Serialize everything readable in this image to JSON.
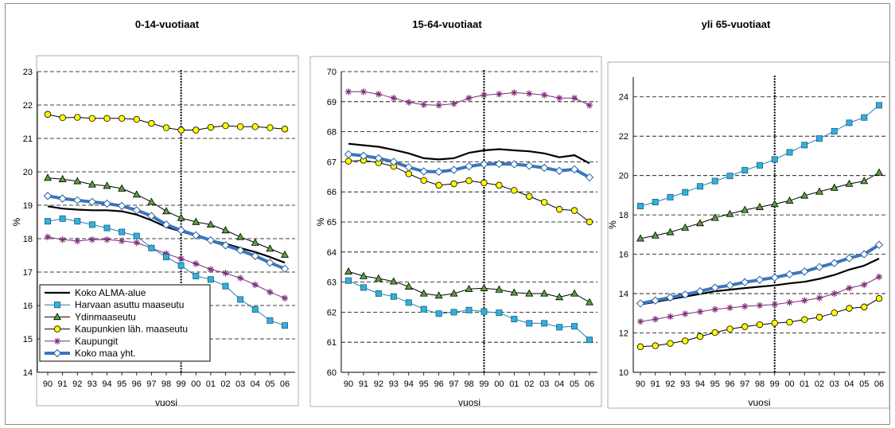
{
  "chart_data": [
    {
      "type": "line",
      "title": "0-14-vuotiaat",
      "xlabel": "vuosi",
      "ylabel": "%",
      "categories": [
        "90",
        "91",
        "92",
        "93",
        "94",
        "95",
        "96",
        "97",
        "98",
        "99",
        "00",
        "01",
        "02",
        "03",
        "04",
        "05",
        "06"
      ],
      "ylim": [
        14,
        23
      ],
      "yticks": [
        14,
        15,
        16,
        17,
        18,
        19,
        20,
        21,
        22,
        23
      ],
      "grid": "horizontal dashed",
      "vertical_marker": "99",
      "legend": "bottom-left",
      "series": [
        {
          "name": "Koko ALMA-alue",
          "values": [
            18.97,
            18.9,
            18.87,
            18.85,
            18.85,
            18.82,
            18.72,
            18.55,
            18.35,
            18.22,
            18.08,
            17.95,
            17.85,
            17.72,
            17.6,
            17.45,
            17.28
          ]
        },
        {
          "name": "Harvaan asuttu maaseutu",
          "values": [
            18.52,
            18.6,
            18.52,
            18.42,
            18.32,
            18.2,
            18.08,
            17.72,
            17.45,
            17.2,
            16.88,
            16.78,
            16.58,
            16.18,
            15.88,
            15.55,
            15.4
          ]
        },
        {
          "name": "Ydinmaaseutu",
          "values": [
            19.82,
            19.78,
            19.72,
            19.62,
            19.58,
            19.5,
            19.32,
            19.1,
            18.82,
            18.62,
            18.5,
            18.42,
            18.25,
            18.05,
            17.88,
            17.7,
            17.52
          ]
        },
        {
          "name": "Kaupunkien läh. maaseutu",
          "values": [
            21.72,
            21.62,
            21.63,
            21.6,
            21.6,
            21.6,
            21.57,
            21.45,
            21.32,
            21.25,
            21.25,
            21.33,
            21.38,
            21.35,
            21.35,
            21.32,
            21.28
          ]
        },
        {
          "name": "Kaupungit",
          "values": [
            18.05,
            17.97,
            17.93,
            17.97,
            17.97,
            17.93,
            17.88,
            17.72,
            17.55,
            17.4,
            17.25,
            17.08,
            16.97,
            16.82,
            16.62,
            16.4,
            16.22
          ]
        },
        {
          "name": "Koko maa yht.",
          "values": [
            19.28,
            19.2,
            19.15,
            19.1,
            19.05,
            18.98,
            18.85,
            18.68,
            18.42,
            18.25,
            18.1,
            17.95,
            17.8,
            17.65,
            17.48,
            17.28,
            17.1
          ]
        }
      ]
    },
    {
      "type": "line",
      "title": "15-64-vuotiaat",
      "xlabel": "vuosi",
      "ylabel": "%",
      "categories": [
        "90",
        "91",
        "92",
        "93",
        "94",
        "95",
        "96",
        "97",
        "98",
        "99",
        "00",
        "01",
        "02",
        "03",
        "04",
        "05",
        "06"
      ],
      "ylim": [
        60,
        70
      ],
      "yticks": [
        60,
        61,
        62,
        63,
        64,
        65,
        66,
        67,
        68,
        69,
        70
      ],
      "grid": "horizontal dashed",
      "vertical_marker": "99",
      "series": [
        {
          "name": "Koko ALMA-alue",
          "values": [
            67.6,
            67.55,
            67.5,
            67.4,
            67.28,
            67.12,
            67.08,
            67.12,
            67.3,
            67.38,
            67.42,
            67.38,
            67.35,
            67.28,
            67.15,
            67.22,
            66.95
          ]
        },
        {
          "name": "Harvaan asuttu maaseutu",
          "values": [
            63.05,
            62.82,
            62.62,
            62.52,
            62.32,
            62.1,
            61.95,
            62.0,
            62.07,
            62.02,
            61.98,
            61.77,
            61.63,
            61.63,
            61.5,
            61.53,
            61.08
          ]
        },
        {
          "name": "Ydinmaaseutu",
          "values": [
            63.35,
            63.2,
            63.12,
            63.02,
            62.85,
            62.62,
            62.55,
            62.62,
            62.77,
            62.8,
            62.75,
            62.65,
            62.62,
            62.62,
            62.5,
            62.62,
            62.33
          ]
        },
        {
          "name": "Kaupunkien läh. maaseutu",
          "values": [
            67.02,
            67.05,
            66.97,
            66.85,
            66.6,
            66.38,
            66.22,
            66.27,
            66.37,
            66.3,
            66.22,
            66.05,
            65.85,
            65.65,
            65.42,
            65.38,
            65.0
          ]
        },
        {
          "name": "Kaupungit",
          "values": [
            69.33,
            69.33,
            69.25,
            69.12,
            68.98,
            68.9,
            68.88,
            68.93,
            69.12,
            69.22,
            69.25,
            69.3,
            69.27,
            69.22,
            69.12,
            69.12,
            68.88
          ]
        },
        {
          "name": "Koko maa yht.",
          "values": [
            67.25,
            67.2,
            67.12,
            67.0,
            66.82,
            66.68,
            66.67,
            66.73,
            66.85,
            66.92,
            66.93,
            66.92,
            66.87,
            66.8,
            66.7,
            66.75,
            66.48
          ]
        }
      ]
    },
    {
      "type": "line",
      "title": "yli 65-vuotiaat",
      "xlabel": "vuosi",
      "ylabel": "%",
      "categories": [
        "90",
        "91",
        "92",
        "93",
        "94",
        "95",
        "96",
        "97",
        "98",
        "99",
        "00",
        "01",
        "02",
        "03",
        "04",
        "05",
        "06"
      ],
      "ylim": [
        10,
        25
      ],
      "yticks": [
        10,
        12,
        14,
        16,
        18,
        20,
        22,
        24
      ],
      "grid": "horizontal dashed",
      "vertical_marker": "99",
      "series": [
        {
          "name": "Koko ALMA-alue",
          "values": [
            13.45,
            13.58,
            13.72,
            13.85,
            13.98,
            14.12,
            14.2,
            14.28,
            14.35,
            14.42,
            14.52,
            14.6,
            14.75,
            14.95,
            15.22,
            15.42,
            15.78
          ]
        },
        {
          "name": "Harvaan asuttu maaseutu",
          "values": [
            18.45,
            18.65,
            18.9,
            19.15,
            19.45,
            19.72,
            19.98,
            20.27,
            20.52,
            20.82,
            21.18,
            21.55,
            21.88,
            22.25,
            22.68,
            22.95,
            23.57
          ]
        },
        {
          "name": "Ydinmaaseutu",
          "values": [
            16.8,
            16.95,
            17.12,
            17.35,
            17.58,
            17.85,
            18.05,
            18.25,
            18.4,
            18.55,
            18.72,
            18.98,
            19.18,
            19.38,
            19.58,
            19.72,
            20.15
          ]
        },
        {
          "name": "Kaupunkien läh. maaseutu",
          "values": [
            11.3,
            11.35,
            11.47,
            11.6,
            11.82,
            12.02,
            12.2,
            12.32,
            12.42,
            12.5,
            12.55,
            12.68,
            12.8,
            13.02,
            13.25,
            13.32,
            13.75
          ]
        },
        {
          "name": "Kaupungit",
          "values": [
            12.58,
            12.7,
            12.83,
            12.97,
            13.08,
            13.2,
            13.28,
            13.35,
            13.4,
            13.45,
            13.55,
            13.65,
            13.78,
            14.0,
            14.28,
            14.45,
            14.85
          ]
        },
        {
          "name": "Koko maa yht.",
          "values": [
            13.5,
            13.65,
            13.8,
            13.95,
            14.12,
            14.3,
            14.42,
            14.58,
            14.7,
            14.82,
            14.98,
            15.12,
            15.35,
            15.55,
            15.8,
            16.0,
            16.48
          ]
        }
      ]
    }
  ],
  "style": {
    "series": {
      "Koko ALMA-alue": {
        "color": "#000000",
        "width": 2.2,
        "marker": "none"
      },
      "Harvaan asuttu maaseutu": {
        "color": "#1f7fb5",
        "marker": "square",
        "fill": "#33b0d8"
      },
      "Ydinmaaseutu": {
        "color": "#000000",
        "marker": "triangle",
        "fill": "#5aa13a"
      },
      "Kaupunkien läh. maaseutu": {
        "color": "#000000",
        "marker": "circle",
        "fill": "#ffff00"
      },
      "Kaupungit": {
        "color": "#7d2f7b",
        "marker": "star",
        "fill": "#7d2f7b"
      },
      "Koko maa yht.": {
        "color": "#3d78c0",
        "width": 3.2,
        "marker": "diamond",
        "fill": "#ffffff"
      }
    },
    "grid_color": "#000000",
    "marker_line_color": "#000000"
  }
}
